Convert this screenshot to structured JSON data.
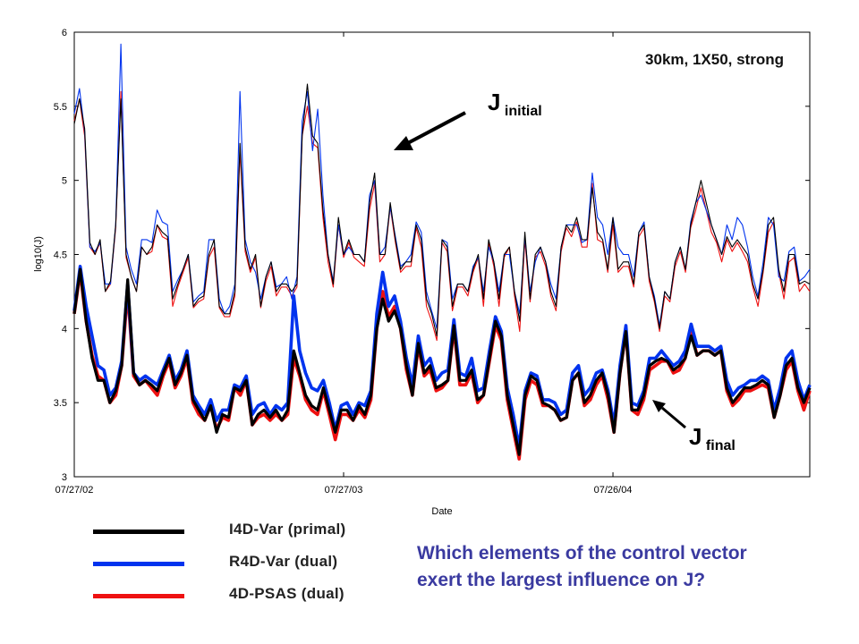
{
  "chart_data": {
    "type": "line",
    "title": "30km, 1X50, strong",
    "xlabel": "Date",
    "ylabel": "log10(J)",
    "ylim": [
      3,
      6
    ],
    "yticks": [
      3,
      3.5,
      4,
      4.5,
      5,
      5.5,
      6
    ],
    "yticklabels": [
      "3",
      "3.5",
      "4",
      "4.5",
      "5",
      "5.5",
      "6"
    ],
    "xlim": [
      0,
      142
    ],
    "xticks": [
      0,
      52,
      104
    ],
    "xticklabels": [
      "07/27/02",
      "07/27/03",
      "07/26/04"
    ],
    "grid": false,
    "annotations": {
      "initial": {
        "main": "J",
        "sub": "initial"
      },
      "final": {
        "main": "J",
        "sub": "final"
      }
    },
    "colors": {
      "primal": "#000000",
      "r4d": "#0033ee",
      "psas": "#ee1111"
    },
    "series": [
      {
        "name": "I4D-Var (primal)",
        "group": "initial",
        "color": "#000000",
        "values": [
          5.38,
          5.55,
          5.35,
          4.58,
          4.5,
          4.6,
          4.25,
          4.32,
          4.7,
          5.55,
          4.5,
          4.35,
          4.25,
          4.55,
          4.5,
          4.55,
          4.7,
          4.65,
          4.62,
          4.2,
          4.3,
          4.4,
          4.5,
          4.15,
          4.2,
          4.22,
          4.5,
          4.6,
          4.15,
          4.1,
          4.1,
          4.25,
          5.25,
          4.55,
          4.4,
          4.5,
          4.15,
          4.35,
          4.45,
          4.25,
          4.3,
          4.3,
          4.25,
          4.3,
          5.3,
          5.65,
          5.3,
          5.25,
          4.8,
          4.5,
          4.3,
          4.75,
          4.5,
          4.6,
          4.5,
          4.5,
          4.45,
          4.85,
          5.05,
          4.5,
          4.5,
          4.85,
          4.6,
          4.4,
          4.45,
          4.45,
          4.7,
          4.6,
          4.2,
          4.1,
          3.95,
          4.6,
          4.55,
          4.15,
          4.3,
          4.3,
          4.25,
          4.4,
          4.5,
          4.2,
          4.6,
          4.45,
          4.2,
          4.5,
          4.55,
          4.25,
          4.05,
          4.65,
          4.2,
          4.5,
          4.55,
          4.45,
          4.25,
          4.15,
          4.55,
          4.7,
          4.65,
          4.75,
          4.6,
          4.6,
          4.95,
          4.65,
          4.6,
          4.4,
          4.75,
          4.4,
          4.45,
          4.45,
          4.3,
          4.65,
          4.7,
          4.35,
          4.2,
          4.0,
          4.25,
          4.2,
          4.45,
          4.55,
          4.4,
          4.7,
          4.85,
          5.0,
          4.85,
          4.7,
          4.6,
          4.5,
          4.62,
          4.55,
          4.6,
          4.55,
          4.5,
          4.3,
          4.2,
          4.4,
          4.7,
          4.75,
          4.4,
          4.25,
          4.5,
          4.5,
          4.3,
          4.32,
          4.3
        ]
      },
      {
        "name": "R4D-Var (dual)",
        "group": "initial",
        "color": "#0033ee",
        "values": [
          5.45,
          5.62,
          5.33,
          4.55,
          4.52,
          4.58,
          4.3,
          4.3,
          4.7,
          5.92,
          4.55,
          4.4,
          4.3,
          4.6,
          4.6,
          4.58,
          4.8,
          4.72,
          4.7,
          4.25,
          4.33,
          4.4,
          4.5,
          4.18,
          4.22,
          4.25,
          4.6,
          4.6,
          4.2,
          4.1,
          4.15,
          4.3,
          5.6,
          4.6,
          4.45,
          4.38,
          4.2,
          4.35,
          4.45,
          4.28,
          4.3,
          4.35,
          4.2,
          4.35,
          5.4,
          5.6,
          5.2,
          5.48,
          4.9,
          4.5,
          4.32,
          4.7,
          4.5,
          4.55,
          4.5,
          4.5,
          4.45,
          4.9,
          5.0,
          4.5,
          4.55,
          4.82,
          4.62,
          4.42,
          4.45,
          4.5,
          4.72,
          4.65,
          4.25,
          4.12,
          4.0,
          4.6,
          4.58,
          4.2,
          4.3,
          4.3,
          4.25,
          4.42,
          4.48,
          4.25,
          4.55,
          4.45,
          4.25,
          4.5,
          4.5,
          4.25,
          4.1,
          4.62,
          4.25,
          4.45,
          4.55,
          4.45,
          4.3,
          4.2,
          4.55,
          4.7,
          4.7,
          4.7,
          4.58,
          4.6,
          5.05,
          4.75,
          4.7,
          4.5,
          4.75,
          4.55,
          4.5,
          4.5,
          4.35,
          4.65,
          4.72,
          4.35,
          4.22,
          4.02,
          4.25,
          4.2,
          4.45,
          4.55,
          4.4,
          4.72,
          4.85,
          4.9,
          4.8,
          4.7,
          4.6,
          4.5,
          4.7,
          4.6,
          4.75,
          4.7,
          4.55,
          4.35,
          4.22,
          4.45,
          4.75,
          4.7,
          4.35,
          4.32,
          4.52,
          4.55,
          4.32,
          4.35,
          4.4
        ]
      },
      {
        "name": "4D-PSAS (dual)",
        "group": "initial",
        "color": "#ee1111",
        "values": [
          5.4,
          5.55,
          5.3,
          4.55,
          4.5,
          4.58,
          4.25,
          4.3,
          4.68,
          5.6,
          4.48,
          4.35,
          4.25,
          4.55,
          4.5,
          4.52,
          4.7,
          4.62,
          4.6,
          4.15,
          4.28,
          4.38,
          4.48,
          4.14,
          4.18,
          4.2,
          4.48,
          4.55,
          4.14,
          4.08,
          4.08,
          4.22,
          5.2,
          4.52,
          4.38,
          4.48,
          4.14,
          4.32,
          4.42,
          4.22,
          4.28,
          4.28,
          4.22,
          4.28,
          5.3,
          5.5,
          5.25,
          5.22,
          4.75,
          4.45,
          4.28,
          4.7,
          4.48,
          4.58,
          4.48,
          4.45,
          4.42,
          4.8,
          4.98,
          4.45,
          4.5,
          4.82,
          4.58,
          4.38,
          4.42,
          4.42,
          4.68,
          4.55,
          4.15,
          4.05,
          3.92,
          4.58,
          4.52,
          4.12,
          4.28,
          4.28,
          4.22,
          4.38,
          4.48,
          4.15,
          4.58,
          4.42,
          4.15,
          4.48,
          4.55,
          4.22,
          3.98,
          4.6,
          4.18,
          4.48,
          4.52,
          4.42,
          4.22,
          4.12,
          4.52,
          4.68,
          4.62,
          4.72,
          4.55,
          4.55,
          4.98,
          4.6,
          4.58,
          4.38,
          4.7,
          4.38,
          4.42,
          4.42,
          4.28,
          4.62,
          4.68,
          4.32,
          4.18,
          3.98,
          4.22,
          4.18,
          4.42,
          4.52,
          4.38,
          4.68,
          4.8,
          4.95,
          4.8,
          4.65,
          4.58,
          4.45,
          4.6,
          4.52,
          4.58,
          4.52,
          4.45,
          4.28,
          4.15,
          4.38,
          4.65,
          4.72,
          4.38,
          4.2,
          4.45,
          4.48,
          4.25,
          4.3,
          4.25
        ]
      },
      {
        "name": "I4D-Var (primal)",
        "group": "final",
        "color": "#000000",
        "values": [
          4.1,
          4.4,
          4.05,
          3.8,
          3.65,
          3.65,
          3.5,
          3.58,
          3.75,
          4.33,
          3.7,
          3.62,
          3.65,
          3.62,
          3.58,
          3.7,
          3.8,
          3.62,
          3.7,
          3.82,
          3.52,
          3.45,
          3.38,
          3.48,
          3.3,
          3.42,
          3.4,
          3.6,
          3.58,
          3.65,
          3.35,
          3.42,
          3.45,
          3.4,
          3.45,
          3.38,
          3.45,
          3.85,
          3.7,
          3.55,
          3.48,
          3.45,
          3.6,
          3.45,
          3.3,
          3.45,
          3.45,
          3.38,
          3.48,
          3.42,
          3.55,
          4.0,
          4.2,
          4.05,
          4.12,
          4.0,
          3.75,
          3.55,
          3.9,
          3.7,
          3.75,
          3.6,
          3.62,
          3.65,
          4.02,
          3.65,
          3.65,
          3.72,
          3.52,
          3.55,
          3.8,
          4.05,
          3.95,
          3.55,
          3.35,
          3.15,
          3.55,
          3.68,
          3.65,
          3.5,
          3.48,
          3.45,
          3.38,
          3.4,
          3.65,
          3.7,
          3.5,
          3.55,
          3.65,
          3.7,
          3.55,
          3.3,
          3.7,
          3.98,
          3.45,
          3.45,
          3.55,
          3.75,
          3.78,
          3.8,
          3.78,
          3.72,
          3.75,
          3.8,
          3.95,
          3.82,
          3.85,
          3.85,
          3.82,
          3.85,
          3.6,
          3.5,
          3.55,
          3.6,
          3.6,
          3.62,
          3.65,
          3.62,
          3.4,
          3.55,
          3.75,
          3.8,
          3.6,
          3.5,
          3.6
        ]
      },
      {
        "name": "R4D-Var (dual)",
        "group": "final",
        "color": "#0033ee",
        "values": [
          4.12,
          4.42,
          4.15,
          3.95,
          3.75,
          3.72,
          3.55,
          3.6,
          3.78,
          4.3,
          3.7,
          3.65,
          3.68,
          3.65,
          3.62,
          3.72,
          3.82,
          3.65,
          3.72,
          3.85,
          3.55,
          3.48,
          3.42,
          3.52,
          3.38,
          3.45,
          3.45,
          3.62,
          3.6,
          3.68,
          3.42,
          3.48,
          3.5,
          3.42,
          3.48,
          3.45,
          3.5,
          4.22,
          3.85,
          3.7,
          3.6,
          3.58,
          3.65,
          3.5,
          3.32,
          3.48,
          3.5,
          3.42,
          3.5,
          3.48,
          3.58,
          4.1,
          4.38,
          4.15,
          4.22,
          4.05,
          3.8,
          3.62,
          3.95,
          3.75,
          3.8,
          3.65,
          3.7,
          3.72,
          4.06,
          3.7,
          3.68,
          3.8,
          3.58,
          3.6,
          3.85,
          4.08,
          3.98,
          3.6,
          3.42,
          3.2,
          3.58,
          3.7,
          3.68,
          3.52,
          3.52,
          3.5,
          3.42,
          3.45,
          3.7,
          3.75,
          3.55,
          3.6,
          3.7,
          3.72,
          3.58,
          3.35,
          3.75,
          4.02,
          3.5,
          3.48,
          3.58,
          3.8,
          3.8,
          3.85,
          3.8,
          3.75,
          3.78,
          3.85,
          4.03,
          3.88,
          3.88,
          3.88,
          3.85,
          3.88,
          3.65,
          3.55,
          3.6,
          3.62,
          3.65,
          3.65,
          3.68,
          3.65,
          3.45,
          3.6,
          3.8,
          3.85,
          3.65,
          3.52,
          3.62
        ]
      },
      {
        "name": "4D-PSAS (dual)",
        "group": "final",
        "color": "#ee1111",
        "values": [
          4.1,
          4.38,
          4.05,
          3.82,
          3.68,
          3.65,
          3.5,
          3.55,
          3.75,
          4.25,
          3.68,
          3.62,
          3.65,
          3.6,
          3.55,
          3.68,
          3.78,
          3.6,
          3.68,
          3.8,
          3.5,
          3.42,
          3.38,
          3.48,
          3.32,
          3.4,
          3.38,
          3.6,
          3.55,
          3.65,
          3.35,
          3.4,
          3.42,
          3.38,
          3.42,
          3.38,
          3.42,
          3.8,
          3.68,
          3.52,
          3.45,
          3.42,
          3.58,
          3.42,
          3.25,
          3.42,
          3.42,
          3.38,
          3.45,
          3.4,
          3.52,
          4.0,
          4.25,
          4.08,
          4.15,
          4.0,
          3.72,
          3.55,
          3.88,
          3.68,
          3.72,
          3.58,
          3.6,
          3.65,
          4.0,
          3.62,
          3.62,
          3.7,
          3.5,
          3.55,
          3.78,
          4.02,
          3.92,
          3.52,
          3.32,
          3.12,
          3.52,
          3.65,
          3.62,
          3.48,
          3.48,
          3.45,
          3.38,
          3.4,
          3.65,
          3.7,
          3.48,
          3.52,
          3.62,
          3.68,
          3.52,
          3.3,
          3.7,
          3.98,
          3.45,
          3.42,
          3.52,
          3.72,
          3.75,
          3.78,
          3.78,
          3.7,
          3.72,
          3.8,
          3.98,
          3.82,
          3.85,
          3.85,
          3.82,
          3.85,
          3.58,
          3.48,
          3.52,
          3.58,
          3.58,
          3.6,
          3.62,
          3.6,
          3.4,
          3.55,
          3.72,
          3.78,
          3.58,
          3.45,
          3.58
        ]
      }
    ]
  },
  "legend": [
    {
      "label": "I4D-Var (primal)",
      "color": "#000000"
    },
    {
      "label": "R4D-Var (dual)",
      "color": "#0033ee"
    },
    {
      "label": "4D-PSAS (dual)",
      "color": "#ee1111"
    }
  ],
  "question": {
    "line1": "Which elements of the control vector",
    "line2": "exert the largest influence on J?"
  }
}
